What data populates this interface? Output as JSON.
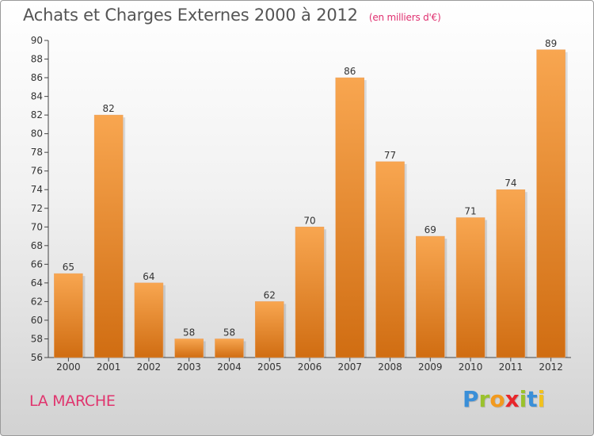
{
  "header": {
    "title": "Achats et Charges Externes 2000 à 2012",
    "subtitle": "(en milliers d'€)"
  },
  "footer": {
    "commune": "LA MARCHE",
    "logo_letters": [
      "P",
      "r",
      "o",
      "x",
      "i",
      "t",
      "i"
    ],
    "logo_colors": [
      "#3a8fd8",
      "#9ac22c",
      "#f29a1e",
      "#e8262b",
      "#9ac22c",
      "#3a8fd8",
      "#f2c21e"
    ]
  },
  "colors": {
    "bar_light": "#f8a650",
    "bar_dark": "#d06d12",
    "title": "#555555",
    "commune": "#e0356e"
  },
  "chart_data": {
    "type": "bar",
    "title": "Achats et Charges Externes 2000 à 2012",
    "subtitle": "(en milliers d'€)",
    "categories": [
      "2000",
      "2001",
      "2002",
      "2003",
      "2004",
      "2005",
      "2006",
      "2007",
      "2008",
      "2009",
      "2010",
      "2011",
      "2012"
    ],
    "values": [
      65,
      82,
      64,
      58,
      58,
      62,
      70,
      86,
      77,
      69,
      71,
      74,
      89
    ],
    "ylim": [
      56,
      90
    ],
    "yticks": [
      56,
      58,
      60,
      62,
      64,
      66,
      68,
      70,
      72,
      74,
      76,
      78,
      80,
      82,
      84,
      86,
      88,
      90
    ],
    "grid": false,
    "data_labels": true
  }
}
